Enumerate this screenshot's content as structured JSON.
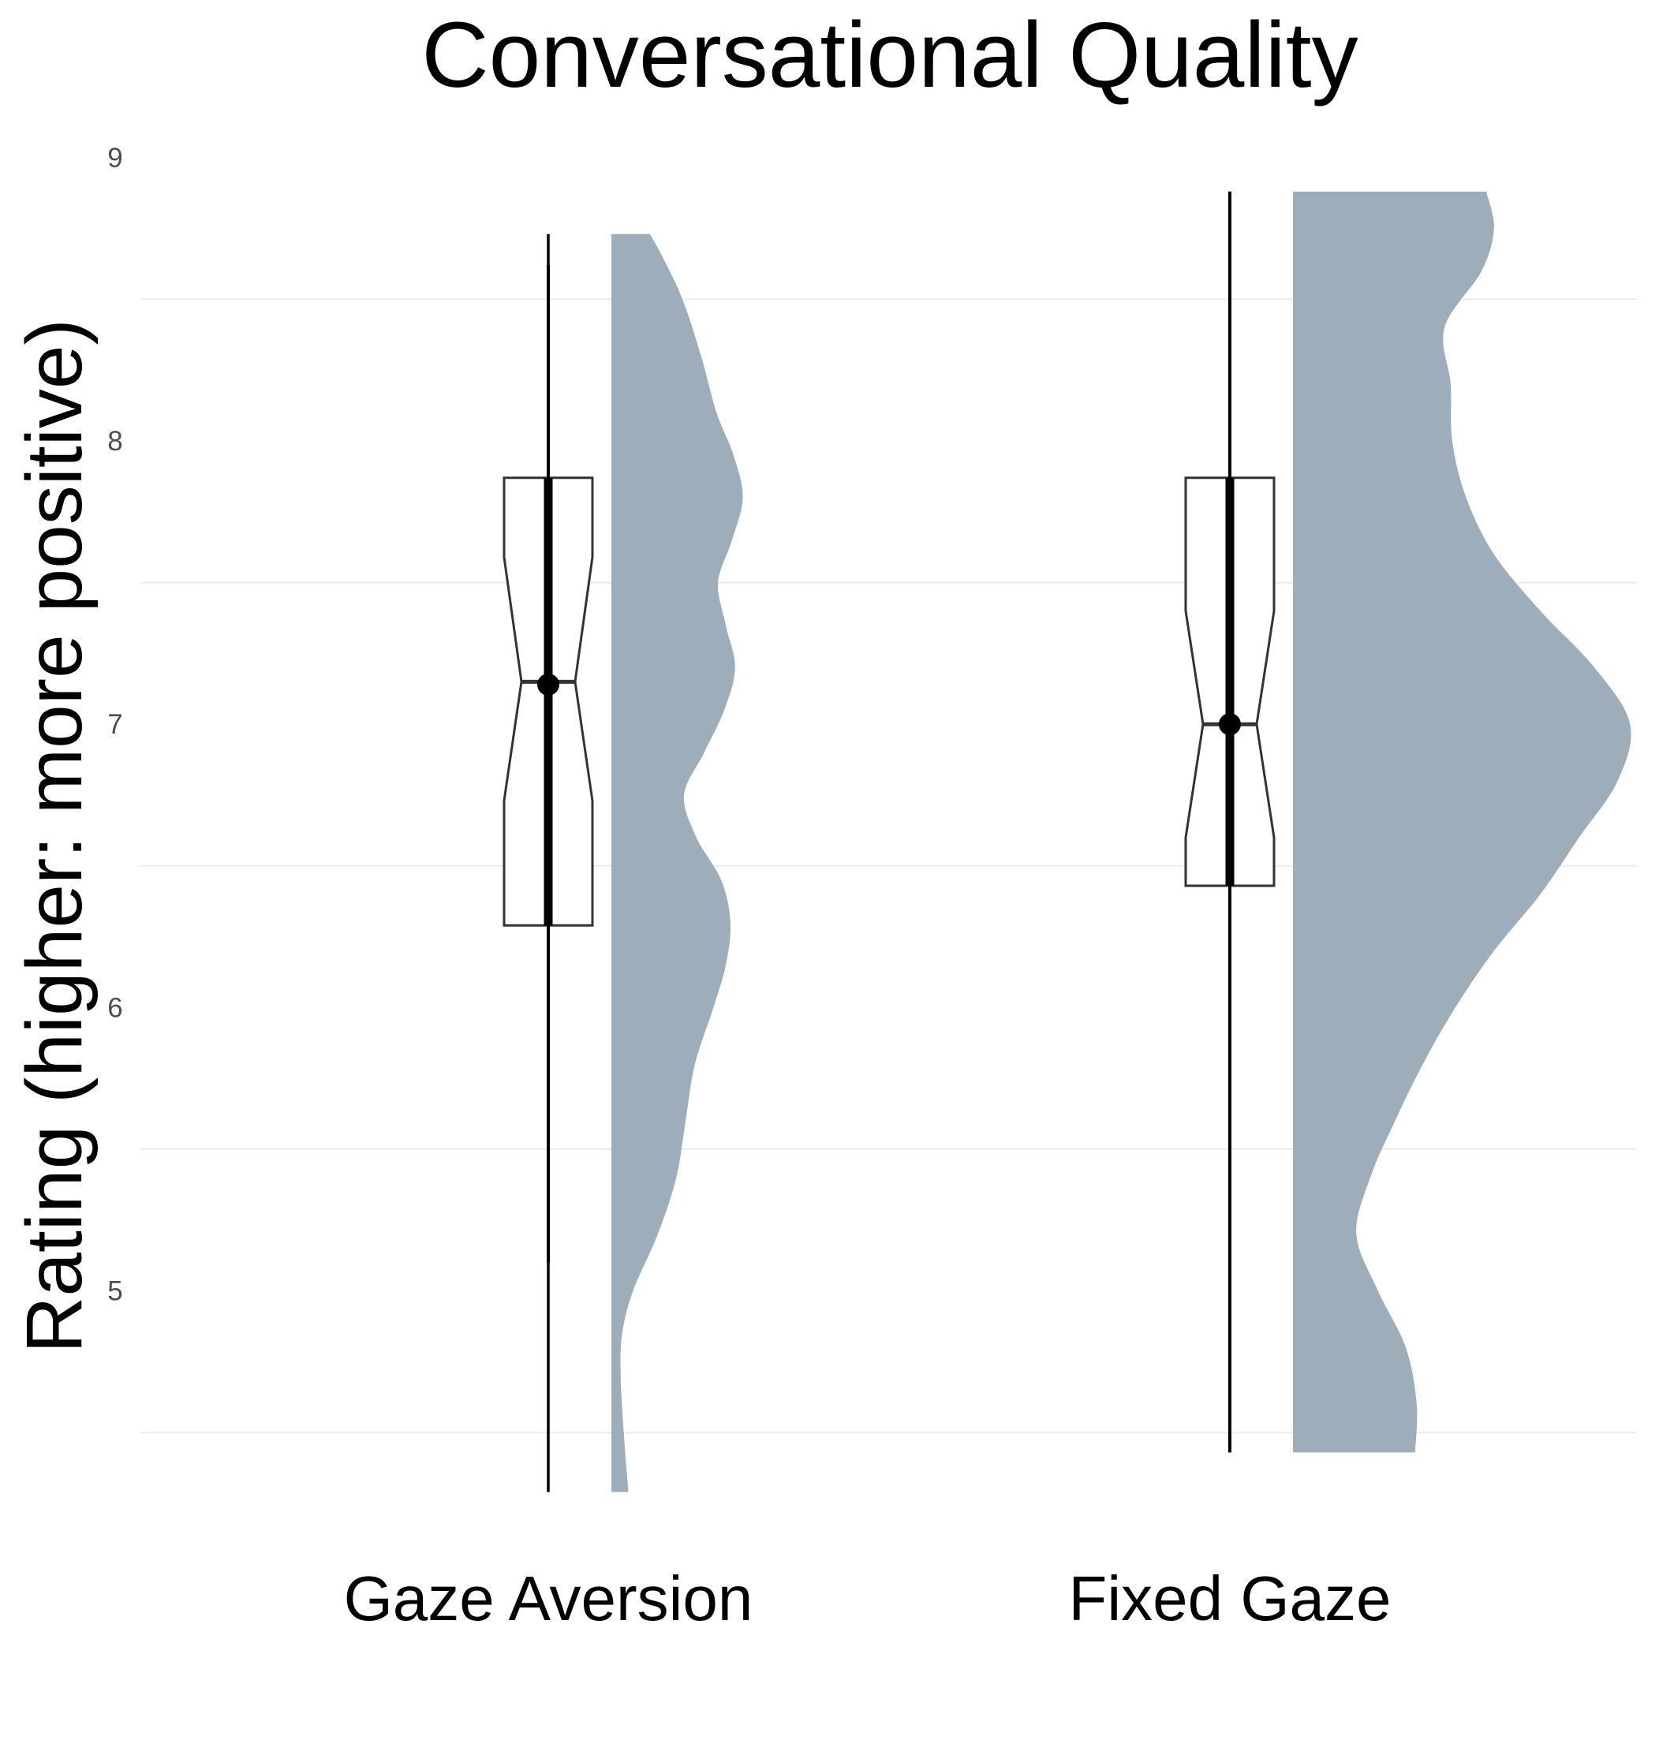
{
  "chart_data": {
    "type": "raincloud",
    "title": "Conversational Quality",
    "xlabel": "",
    "ylabel": "Rating (higher: more positive)",
    "ylim": [
      4.3,
      9.0
    ],
    "yticks": [
      5,
      6,
      7,
      8,
      9
    ],
    "yticklabels": [
      "5",
      "6",
      "7",
      "8",
      "9"
    ],
    "grid_major_y": false,
    "grid_minor_y": [
      4.5,
      5.5,
      6.5,
      7.5,
      8.5
    ],
    "legend": "none",
    "colors": {
      "density": "#9daeba",
      "box_outline": "#333333",
      "line": "#000000"
    },
    "categories": [
      "Gaze Aversion",
      "Fixed Gaze"
    ],
    "groups": [
      {
        "name": "Gaze Aversion",
        "box": {
          "q1": 6.29,
          "median": 7.15,
          "q3": 7.87,
          "notch_low": 6.73,
          "notch_high": 7.59
        },
        "whisker": {
          "low": 4.29,
          "high": 8.73
        },
        "interval": {
          "low": 5.1,
          "high": 8.62
        },
        "mean": 7.14,
        "density": {
          "y": [
            4.29,
            4.5,
            4.7,
            4.85,
            5.0,
            5.2,
            5.4,
            5.6,
            5.8,
            6.0,
            6.15,
            6.3,
            6.45,
            6.6,
            6.75,
            6.9,
            7.05,
            7.2,
            7.35,
            7.5,
            7.65,
            7.8,
            7.95,
            8.1,
            8.3,
            8.5,
            8.65,
            8.73
          ],
          "width": [
            0.11,
            0.08,
            0.06,
            0.07,
            0.14,
            0.3,
            0.42,
            0.48,
            0.54,
            0.66,
            0.74,
            0.77,
            0.71,
            0.55,
            0.47,
            0.6,
            0.73,
            0.8,
            0.74,
            0.69,
            0.78,
            0.85,
            0.79,
            0.68,
            0.58,
            0.46,
            0.33,
            0.25
          ]
        }
      },
      {
        "name": "Fixed Gaze",
        "box": {
          "q1": 6.43,
          "median": 7.0,
          "q3": 7.87,
          "notch_low": 6.6,
          "notch_high": 7.4
        },
        "whisker": {
          "low": 4.43,
          "high": 8.88
        },
        "interval": {
          "low": 4.43,
          "high": 8.88
        },
        "mean": 7.0,
        "density": {
          "y": [
            4.43,
            4.6,
            4.8,
            5.0,
            5.2,
            5.4,
            5.6,
            5.8,
            6.0,
            6.2,
            6.4,
            6.6,
            6.8,
            7.0,
            7.2,
            7.4,
            7.6,
            7.8,
            8.0,
            8.2,
            8.4,
            8.6,
            8.75,
            8.88
          ],
          "width": [
            0.79,
            0.8,
            0.73,
            0.55,
            0.41,
            0.5,
            0.66,
            0.84,
            1.05,
            1.3,
            1.6,
            1.85,
            2.1,
            2.18,
            1.95,
            1.6,
            1.3,
            1.12,
            1.03,
            1.02,
            0.98,
            1.22,
            1.3,
            1.25
          ]
        }
      }
    ]
  }
}
